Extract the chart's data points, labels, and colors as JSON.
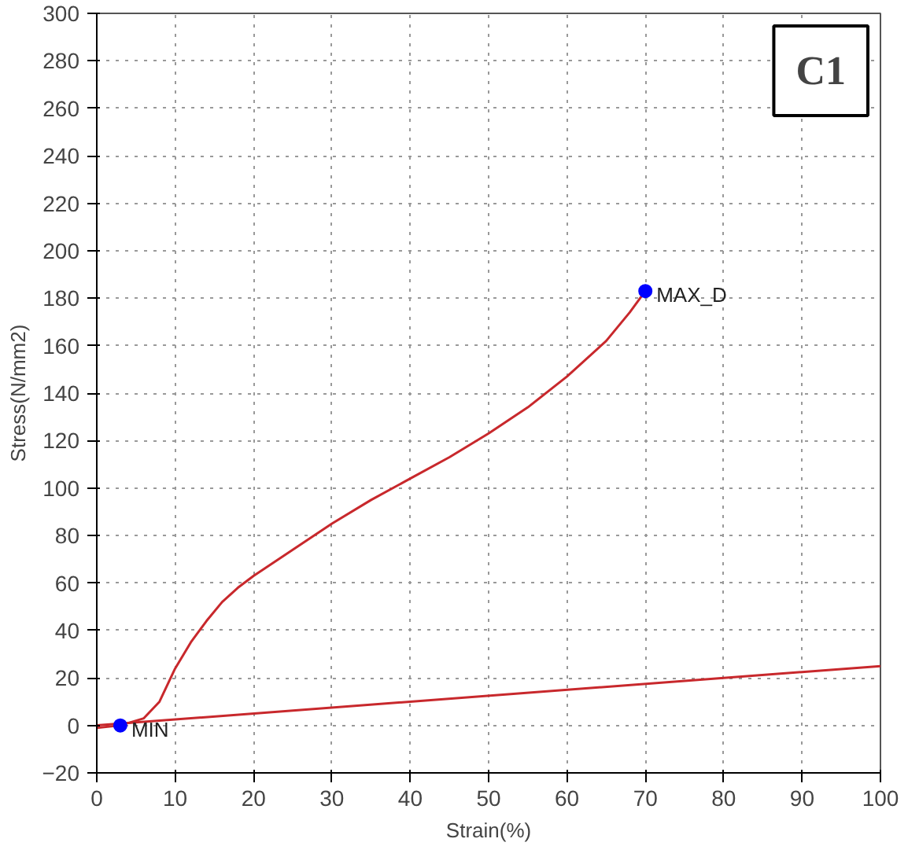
{
  "chart_data": {
    "type": "line",
    "xlabel": "Strain(%)",
    "ylabel": "Stress(N/mm2)",
    "xlim": [
      0,
      100
    ],
    "ylim": [
      -20,
      300
    ],
    "xticks": [
      0,
      10,
      20,
      30,
      40,
      50,
      60,
      70,
      80,
      90,
      100
    ],
    "yticks": [
      -20,
      0,
      20,
      40,
      60,
      80,
      100,
      120,
      140,
      160,
      180,
      200,
      220,
      240,
      260,
      280,
      300
    ],
    "grid": true,
    "line_style": "solid",
    "marker": "none",
    "series": [
      {
        "color": "#c8282c",
        "x": [
          0,
          3,
          6,
          8,
          10,
          12,
          14,
          16,
          18,
          20,
          25,
          30,
          35,
          40,
          45,
          50,
          55,
          60,
          65,
          68,
          70
        ],
        "values": [
          -1,
          0,
          3,
          10,
          24,
          35,
          44,
          52,
          58,
          63,
          74,
          85,
          95,
          104,
          113,
          123,
          134,
          147,
          162,
          174,
          183
        ]
      },
      {
        "color": "#c8282c",
        "x": [
          0,
          100
        ],
        "values": [
          0,
          25
        ]
      },
      {
        "type": "scatter",
        "color": "#0000ff",
        "marker": "circle",
        "x": [
          3,
          70
        ],
        "values": [
          0,
          183
        ]
      }
    ],
    "annotations": [
      {
        "text": "MIN",
        "x": 3,
        "y": 0
      },
      {
        "text": "MAX_D",
        "x": 70,
        "y": 183
      },
      "C1"
    ]
  }
}
